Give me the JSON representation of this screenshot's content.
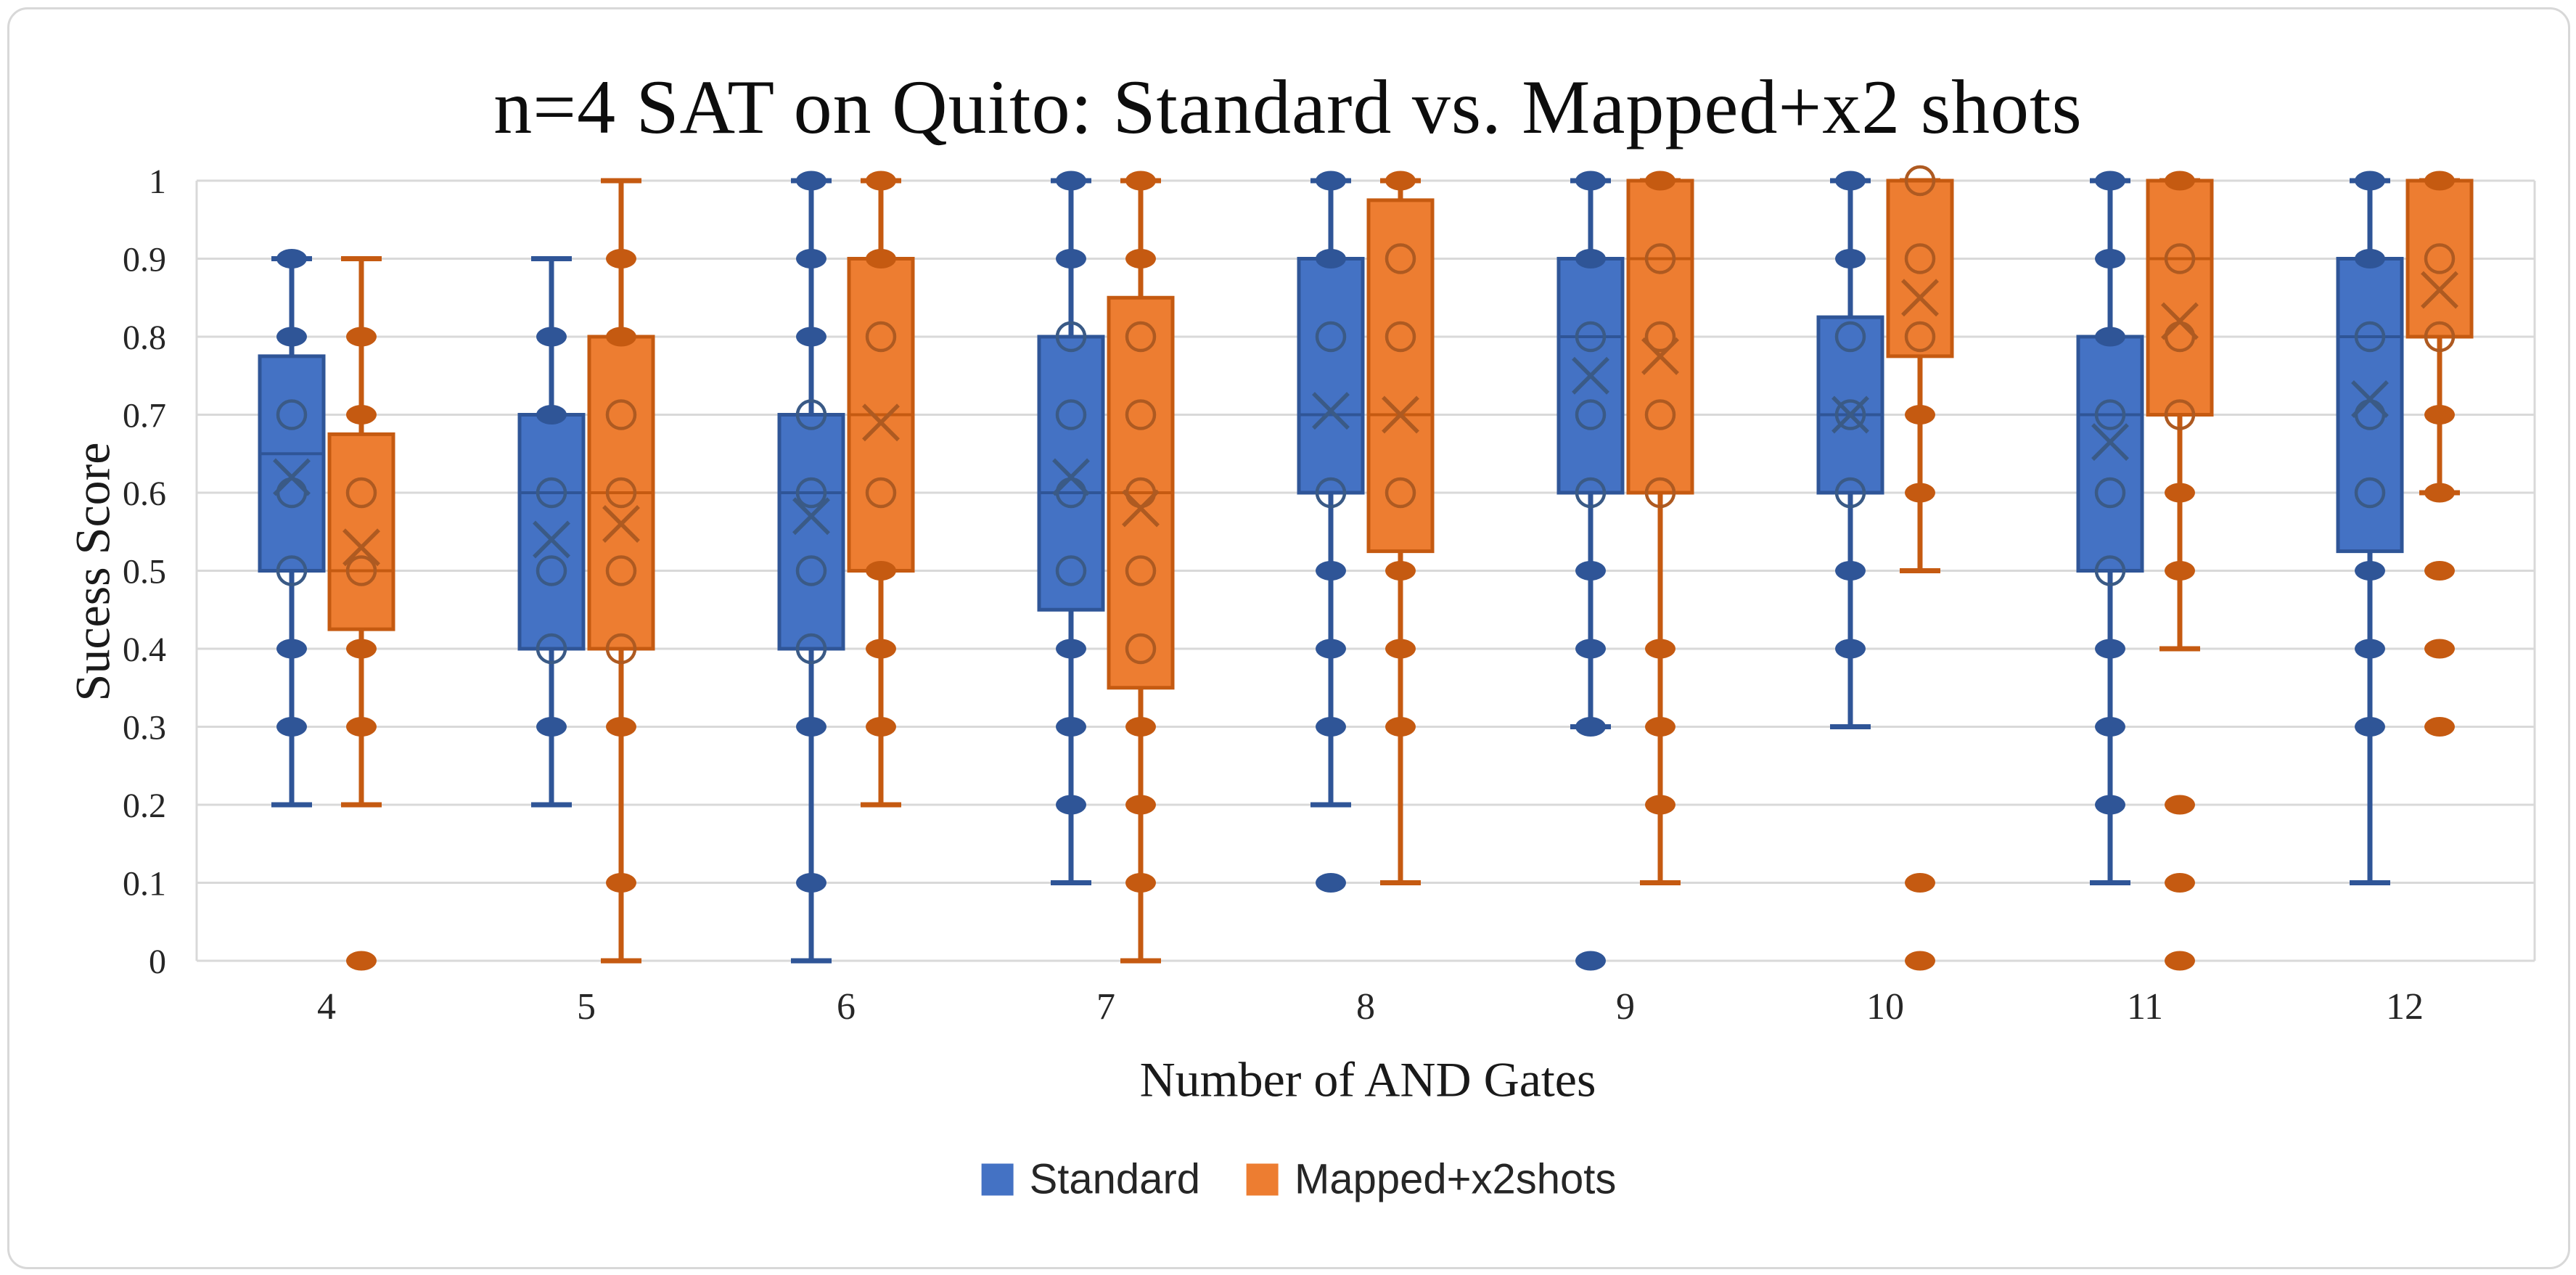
{
  "title": "n=4 SAT on Quito: Standard vs. Mapped+x2 shots",
  "axes": {
    "x_label": "Number of AND Gates",
    "y_label": "Sucess Score",
    "y_ticks": [
      {
        "v": 1.0,
        "label": "1"
      },
      {
        "v": 0.9,
        "label": "0.9"
      },
      {
        "v": 0.8,
        "label": "0.8"
      },
      {
        "v": 0.7,
        "label": "0.7"
      },
      {
        "v": 0.6,
        "label": "0.6"
      },
      {
        "v": 0.5,
        "label": "0.5"
      },
      {
        "v": 0.4,
        "label": "0.4"
      },
      {
        "v": 0.3,
        "label": "0.3"
      },
      {
        "v": 0.2,
        "label": "0.2"
      },
      {
        "v": 0.1,
        "label": "0.1"
      },
      {
        "v": 0.0,
        "label": "0"
      }
    ]
  },
  "legend": {
    "items": [
      {
        "label": "Standard",
        "color": "#4472C4"
      },
      {
        "label": "Mapped+x2shots",
        "color": "#ED7D31"
      }
    ]
  },
  "colors": {
    "gridline": "#D9D9D9",
    "blue_fill": "#4472C4",
    "blue_stroke": "#2F5597",
    "blue_mark": "#3A5A86",
    "orange_fill": "#ED7D31",
    "orange_stroke": "#C55A11",
    "orange_mark": "#AE5A21"
  },
  "chart_data": {
    "type": "boxplot",
    "title": "n=4 SAT on Quito: Standard vs. Mapped+x2 shots",
    "xlabel": "Number of AND Gates",
    "ylabel": "Sucess Score",
    "ylim": [
      0,
      1
    ],
    "grid": true,
    "legend_position": "bottom",
    "categories": [
      4,
      5,
      6,
      7,
      8,
      9,
      10,
      11,
      12
    ],
    "series": [
      {
        "name": "Standard",
        "fill": "#4472C4",
        "stroke": "#2F5597",
        "mark": "#3A5A86",
        "boxes": [
          {
            "cat": 4,
            "min": 0.2,
            "q1": 0.5,
            "med": 0.65,
            "q3": 0.775,
            "max": 0.9,
            "mean": 0.62,
            "dots": [
              0.9,
              0.8,
              0.4,
              0.3
            ],
            "circles": [
              0.7,
              0.6,
              0.5
            ],
            "outliers": []
          },
          {
            "cat": 5,
            "min": 0.2,
            "q1": 0.4,
            "med": 0.6,
            "q3": 0.7,
            "max": 0.9,
            "mean": 0.54,
            "dots": [
              0.8,
              0.7,
              0.3
            ],
            "circles": [
              0.6,
              0.5,
              0.4
            ],
            "outliers": []
          },
          {
            "cat": 6,
            "min": 0.0,
            "q1": 0.4,
            "med": 0.6,
            "q3": 0.7,
            "max": 1.0,
            "mean": 0.57,
            "dots": [
              1.0,
              0.9,
              0.8,
              0.3,
              0.1
            ],
            "circles": [
              0.7,
              0.6,
              0.5,
              0.4
            ],
            "outliers": []
          },
          {
            "cat": 7,
            "min": 0.1,
            "q1": 0.45,
            "med": 0.6,
            "q3": 0.8,
            "max": 1.0,
            "mean": 0.62,
            "dots": [
              1.0,
              0.9,
              0.4,
              0.3,
              0.2
            ],
            "circles": [
              0.8,
              0.7,
              0.6,
              0.5
            ],
            "outliers": []
          },
          {
            "cat": 8,
            "min": 0.2,
            "q1": 0.6,
            "med": 0.7,
            "q3": 0.9,
            "max": 1.0,
            "mean": 0.705,
            "dots": [
              1.0,
              0.9,
              0.5,
              0.4,
              0.3
            ],
            "circles": [
              0.8,
              0.6
            ],
            "outliers": [
              0.1
            ]
          },
          {
            "cat": 9,
            "min": 0.3,
            "q1": 0.6,
            "med": 0.8,
            "q3": 0.9,
            "max": 1.0,
            "mean": 0.75,
            "dots": [
              1.0,
              0.9,
              0.5,
              0.4,
              0.3
            ],
            "circles": [
              0.8,
              0.7,
              0.6
            ],
            "outliers": [
              0.0
            ]
          },
          {
            "cat": 10,
            "min": 0.3,
            "q1": 0.6,
            "med": 0.7,
            "q3": 0.825,
            "max": 1.0,
            "mean": 0.7,
            "dots": [
              1.0,
              0.9,
              0.5,
              0.4
            ],
            "circles": [
              0.8,
              0.7,
              0.6
            ],
            "outliers": []
          },
          {
            "cat": 11,
            "min": 0.1,
            "q1": 0.5,
            "med": 0.7,
            "q3": 0.8,
            "max": 1.0,
            "mean": 0.665,
            "dots": [
              1.0,
              0.9,
              0.8,
              0.4,
              0.3,
              0.2
            ],
            "circles": [
              0.7,
              0.6,
              0.5
            ],
            "outliers": []
          },
          {
            "cat": 12,
            "min": 0.1,
            "q1": 0.525,
            "med": 0.8,
            "q3": 0.9,
            "max": 1.0,
            "mean": 0.72,
            "dots": [
              1.0,
              0.9,
              0.5,
              0.4,
              0.3
            ],
            "circles": [
              0.8,
              0.7,
              0.6
            ],
            "outliers": []
          }
        ]
      },
      {
        "name": "Mapped+x2shots",
        "fill": "#ED7D31",
        "stroke": "#C55A11",
        "mark": "#AE5A21",
        "boxes": [
          {
            "cat": 4,
            "min": 0.2,
            "q1": 0.425,
            "med": 0.5,
            "q3": 0.675,
            "max": 0.9,
            "mean": 0.53,
            "dots": [
              0.8,
              0.7,
              0.4,
              0.3
            ],
            "circles": [
              0.6,
              0.5
            ],
            "outliers": [
              0.0
            ]
          },
          {
            "cat": 5,
            "min": 0.0,
            "q1": 0.4,
            "med": 0.6,
            "q3": 0.8,
            "max": 1.0,
            "mean": 0.56,
            "dots": [
              0.9,
              0.8,
              0.3,
              0.1
            ],
            "circles": [
              0.7,
              0.6,
              0.5,
              0.4
            ],
            "outliers": []
          },
          {
            "cat": 6,
            "min": 0.2,
            "q1": 0.5,
            "med": 0.7,
            "q3": 0.9,
            "max": 1.0,
            "mean": 0.69,
            "dots": [
              1.0,
              0.9,
              0.5,
              0.4,
              0.3
            ],
            "circles": [
              0.8,
              0.6
            ],
            "outliers": []
          },
          {
            "cat": 7,
            "min": 0.0,
            "q1": 0.35,
            "med": 0.6,
            "q3": 0.85,
            "max": 1.0,
            "mean": 0.58,
            "dots": [
              1.0,
              0.9,
              0.3,
              0.2,
              0.1
            ],
            "circles": [
              0.8,
              0.7,
              0.6,
              0.5,
              0.4
            ],
            "outliers": []
          },
          {
            "cat": 8,
            "min": 0.1,
            "q1": 0.525,
            "med": 0.7,
            "q3": 0.975,
            "max": 1.0,
            "mean": 0.7,
            "dots": [
              1.0,
              0.5,
              0.4,
              0.3
            ],
            "circles": [
              0.9,
              0.8,
              0.6
            ],
            "outliers": []
          },
          {
            "cat": 9,
            "min": 0.1,
            "q1": 0.6,
            "med": 0.9,
            "q3": 1.0,
            "max": 1.0,
            "mean": 0.775,
            "dots": [
              1.0,
              0.4,
              0.3,
              0.2
            ],
            "circles": [
              0.9,
              0.8,
              0.7,
              0.6
            ],
            "outliers": []
          },
          {
            "cat": 10,
            "min": 0.5,
            "q1": 0.775,
            "med": 1.0,
            "q3": 1.0,
            "max": 1.0,
            "mean": 0.85,
            "dots": [
              0.7,
              0.6
            ],
            "circles": [
              1.0,
              0.9,
              0.8
            ],
            "outliers": [
              0.1,
              0.0
            ]
          },
          {
            "cat": 11,
            "min": 0.4,
            "q1": 0.7,
            "med": 0.9,
            "q3": 1.0,
            "max": 1.0,
            "mean": 0.82,
            "dots": [
              1.0,
              0.6,
              0.5
            ],
            "circles": [
              0.9,
              0.8,
              0.7
            ],
            "outliers": [
              0.2,
              0.1,
              0.0
            ]
          },
          {
            "cat": 12,
            "min": 0.6,
            "q1": 0.8,
            "med": 1.0,
            "q3": 1.0,
            "max": 1.0,
            "mean": 0.86,
            "dots": [
              1.0,
              0.7,
              0.6
            ],
            "circles": [
              0.9,
              0.8
            ],
            "outliers": [
              0.5,
              0.4,
              0.3
            ]
          }
        ]
      }
    ]
  }
}
